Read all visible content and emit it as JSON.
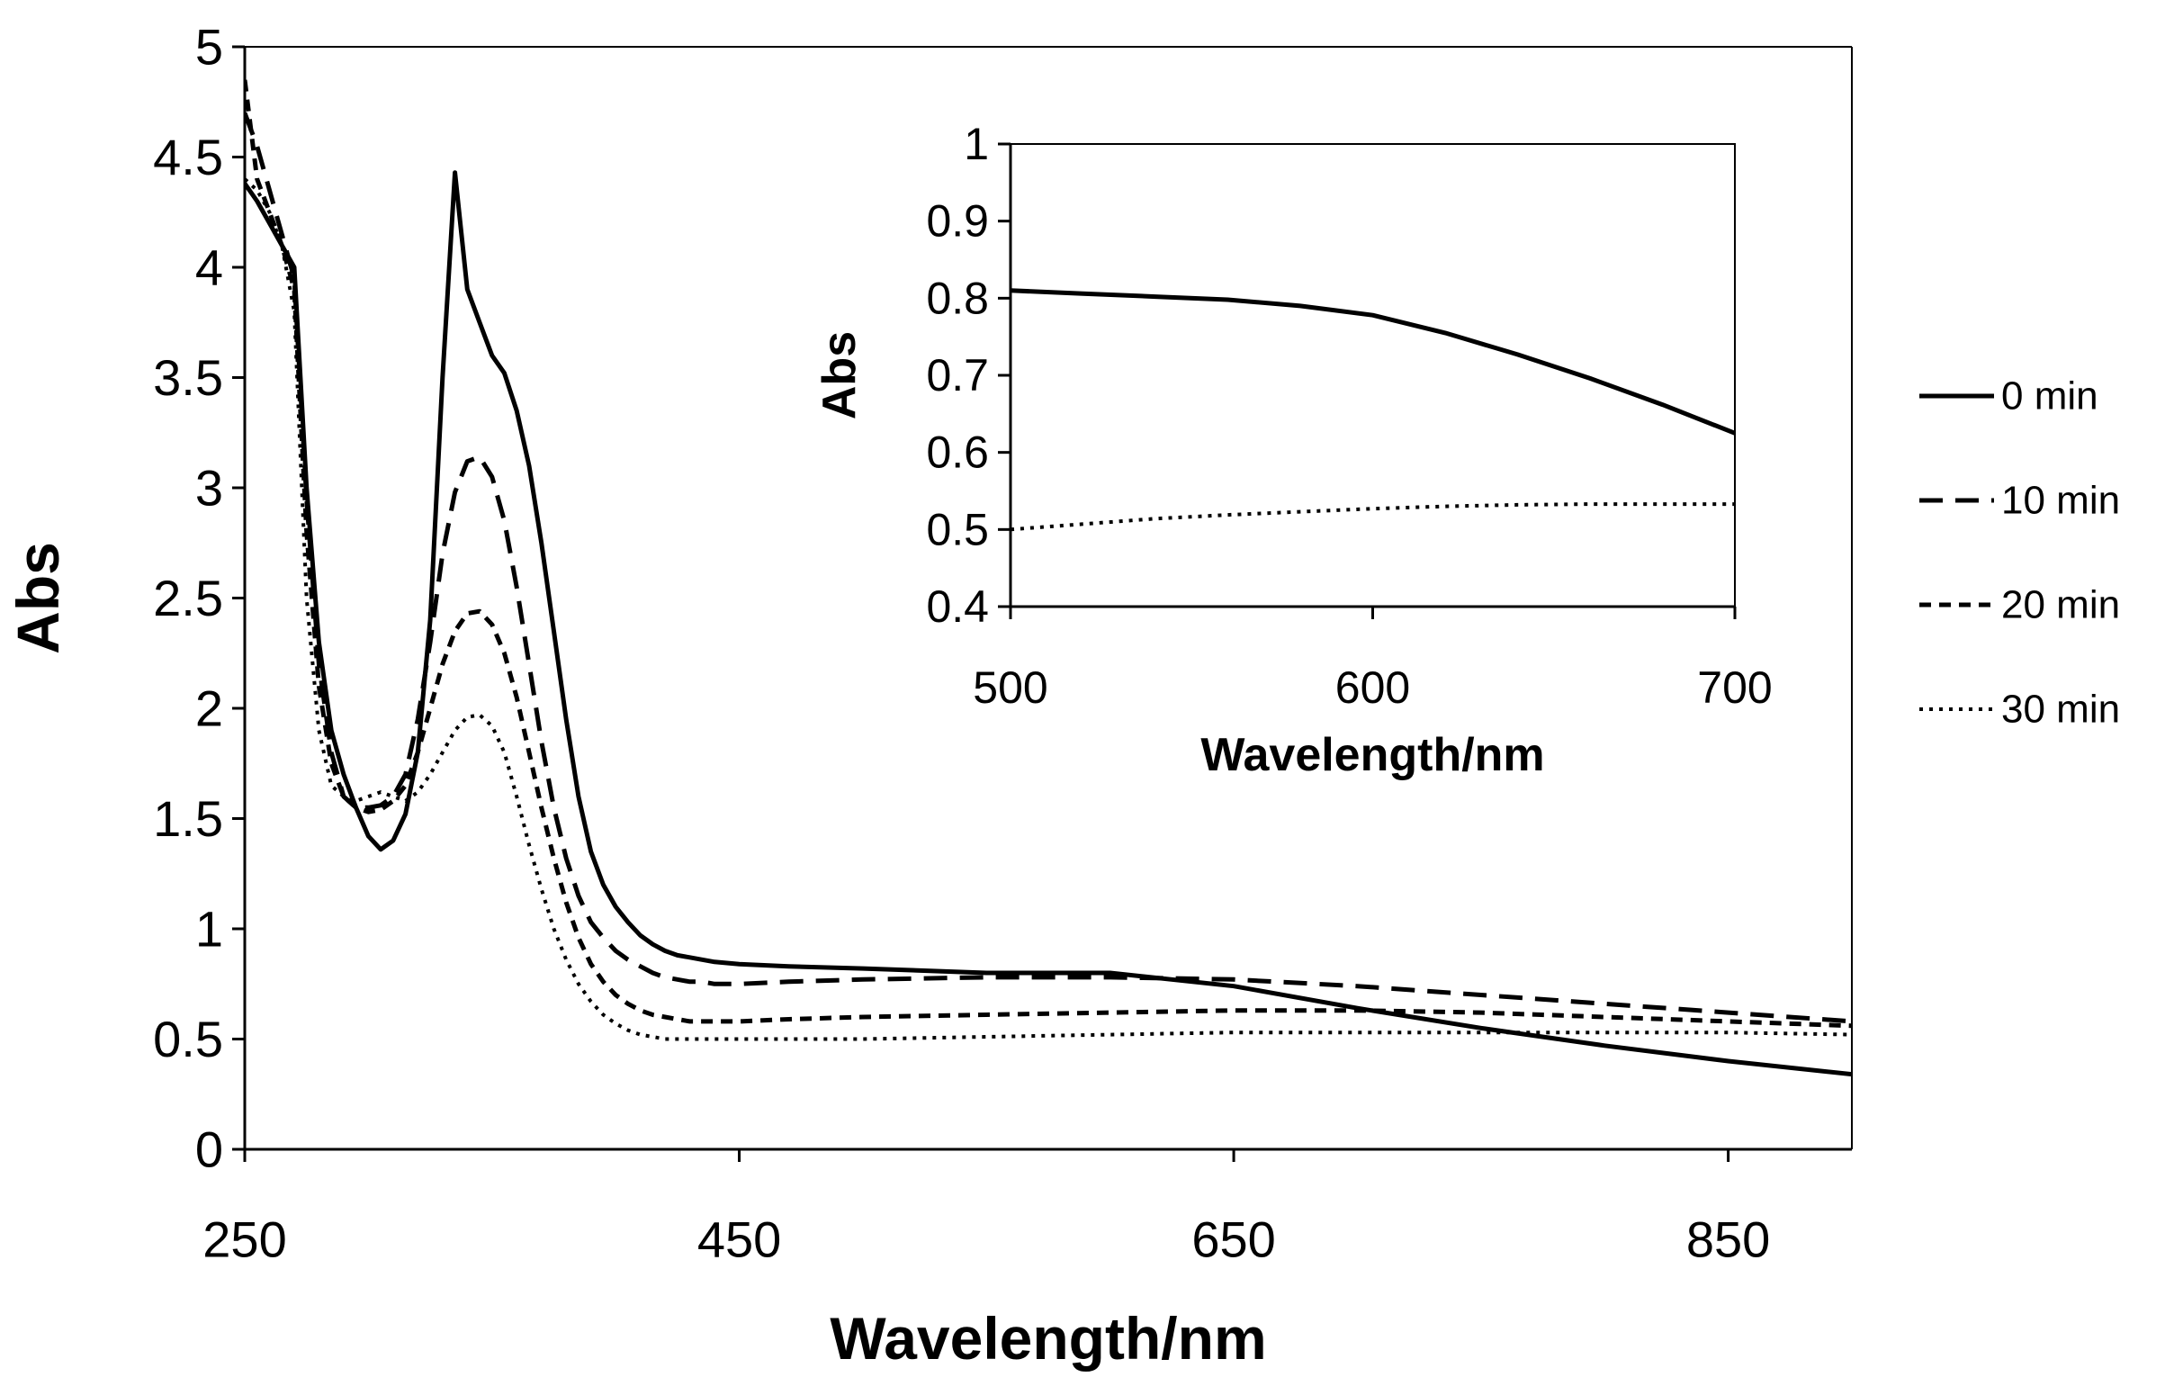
{
  "chart_data": [
    {
      "type": "line",
      "title": "",
      "xlabel": "Wavelength/nm",
      "ylabel": "Abs",
      "xlim": [
        250,
        900
      ],
      "ylim": [
        0,
        5
      ],
      "xticks": [
        "250",
        "450",
        "650",
        "850"
      ],
      "yticks": [
        "0",
        "0.5",
        "1",
        "1.5",
        "2",
        "2.5",
        "3",
        "3.5",
        "4",
        "4.5",
        "5"
      ],
      "legend_position": "right",
      "series": [
        {
          "name": "0 min",
          "style": "solid",
          "x": [
            250,
            255,
            260,
            265,
            270,
            275,
            280,
            285,
            290,
            295,
            300,
            305,
            310,
            315,
            320,
            325,
            330,
            335,
            340,
            345,
            350,
            355,
            360,
            365,
            370,
            375,
            380,
            385,
            390,
            395,
            400,
            405,
            410,
            415,
            420,
            425,
            430,
            435,
            440,
            450,
            470,
            500,
            550,
            600,
            650,
            700,
            750,
            800,
            850,
            900
          ],
          "y": [
            4.38,
            4.3,
            4.2,
            4.1,
            4.0,
            3.0,
            2.3,
            1.9,
            1.7,
            1.55,
            1.42,
            1.36,
            1.4,
            1.52,
            1.8,
            2.4,
            3.5,
            4.43,
            3.9,
            3.75,
            3.6,
            3.52,
            3.35,
            3.1,
            2.75,
            2.35,
            1.95,
            1.6,
            1.35,
            1.2,
            1.1,
            1.03,
            0.97,
            0.93,
            0.9,
            0.88,
            0.87,
            0.86,
            0.85,
            0.84,
            0.83,
            0.82,
            0.8,
            0.8,
            0.74,
            0.64,
            0.55,
            0.47,
            0.4,
            0.34
          ]
        },
        {
          "name": "10 min",
          "style": "dash",
          "x": [
            250,
            255,
            260,
            265,
            270,
            275,
            280,
            285,
            290,
            295,
            300,
            305,
            310,
            315,
            320,
            325,
            330,
            335,
            340,
            345,
            350,
            355,
            360,
            365,
            370,
            375,
            380,
            385,
            390,
            395,
            400,
            405,
            410,
            415,
            420,
            425,
            430,
            435,
            440,
            450,
            470,
            500,
            550,
            600,
            650,
            700,
            750,
            800,
            850,
            900
          ],
          "y": [
            4.7,
            4.55,
            4.35,
            4.15,
            3.95,
            2.95,
            2.2,
            1.8,
            1.6,
            1.55,
            1.55,
            1.56,
            1.6,
            1.7,
            1.95,
            2.3,
            2.7,
            2.98,
            3.12,
            3.14,
            3.05,
            2.85,
            2.55,
            2.2,
            1.85,
            1.55,
            1.32,
            1.15,
            1.03,
            0.96,
            0.9,
            0.86,
            0.83,
            0.8,
            0.78,
            0.77,
            0.76,
            0.76,
            0.75,
            0.75,
            0.76,
            0.77,
            0.78,
            0.78,
            0.77,
            0.74,
            0.7,
            0.66,
            0.62,
            0.58
          ]
        },
        {
          "name": "20 min",
          "style": "short-dash",
          "x": [
            250,
            255,
            260,
            265,
            270,
            275,
            280,
            285,
            290,
            295,
            300,
            305,
            310,
            315,
            320,
            325,
            330,
            335,
            340,
            345,
            350,
            355,
            360,
            365,
            370,
            375,
            380,
            385,
            390,
            395,
            400,
            405,
            410,
            415,
            420,
            425,
            430,
            435,
            440,
            450,
            470,
            500,
            550,
            600,
            650,
            700,
            750,
            800,
            850,
            900
          ],
          "y": [
            4.85,
            4.4,
            4.25,
            4.1,
            3.9,
            2.8,
            2.1,
            1.75,
            1.6,
            1.55,
            1.53,
            1.54,
            1.58,
            1.65,
            1.8,
            2.0,
            2.2,
            2.35,
            2.43,
            2.44,
            2.38,
            2.25,
            2.05,
            1.8,
            1.55,
            1.32,
            1.12,
            0.96,
            0.84,
            0.76,
            0.7,
            0.66,
            0.63,
            0.61,
            0.6,
            0.59,
            0.58,
            0.58,
            0.58,
            0.58,
            0.59,
            0.6,
            0.61,
            0.62,
            0.63,
            0.63,
            0.62,
            0.6,
            0.58,
            0.56
          ]
        },
        {
          "name": "30 min",
          "style": "dot",
          "x": [
            250,
            255,
            260,
            265,
            270,
            275,
            280,
            285,
            290,
            295,
            300,
            305,
            310,
            315,
            320,
            325,
            330,
            335,
            340,
            345,
            350,
            355,
            360,
            365,
            370,
            375,
            380,
            385,
            390,
            395,
            400,
            405,
            410,
            415,
            420,
            425,
            430,
            435,
            440,
            450,
            470,
            500,
            550,
            600,
            650,
            700,
            750,
            800,
            850,
            900
          ],
          "y": [
            4.4,
            4.35,
            4.25,
            4.1,
            3.8,
            2.5,
            1.9,
            1.65,
            1.6,
            1.58,
            1.6,
            1.62,
            1.6,
            1.58,
            1.62,
            1.7,
            1.8,
            1.9,
            1.96,
            1.97,
            1.92,
            1.8,
            1.6,
            1.38,
            1.18,
            1.0,
            0.86,
            0.75,
            0.67,
            0.61,
            0.57,
            0.54,
            0.52,
            0.51,
            0.5,
            0.5,
            0.5,
            0.5,
            0.5,
            0.5,
            0.5,
            0.5,
            0.51,
            0.52,
            0.53,
            0.53,
            0.53,
            0.53,
            0.53,
            0.52
          ]
        }
      ]
    },
    {
      "type": "line",
      "title": "",
      "xlabel": "Wavelength/nm",
      "ylabel": "Abs",
      "xlim": [
        500,
        700
      ],
      "ylim": [
        0.4,
        1
      ],
      "xticks": [
        "500",
        "600",
        "700"
      ],
      "yticks": [
        "0.4",
        "0.5",
        "0.6",
        "0.7",
        "0.8",
        "0.9",
        "1"
      ],
      "series": [
        {
          "name": "0 min",
          "style": "solid",
          "x": [
            500,
            520,
            540,
            560,
            580,
            600,
            620,
            640,
            660,
            680,
            700
          ],
          "y": [
            0.81,
            0.806,
            0.802,
            0.798,
            0.79,
            0.778,
            0.755,
            0.727,
            0.696,
            0.662,
            0.625
          ]
        },
        {
          "name": "30 min",
          "style": "dot",
          "x": [
            500,
            520,
            540,
            560,
            580,
            600,
            620,
            640,
            660,
            680,
            700
          ],
          "y": [
            0.5,
            0.507,
            0.514,
            0.519,
            0.523,
            0.527,
            0.53,
            0.532,
            0.533,
            0.533,
            0.533
          ]
        }
      ]
    }
  ]
}
